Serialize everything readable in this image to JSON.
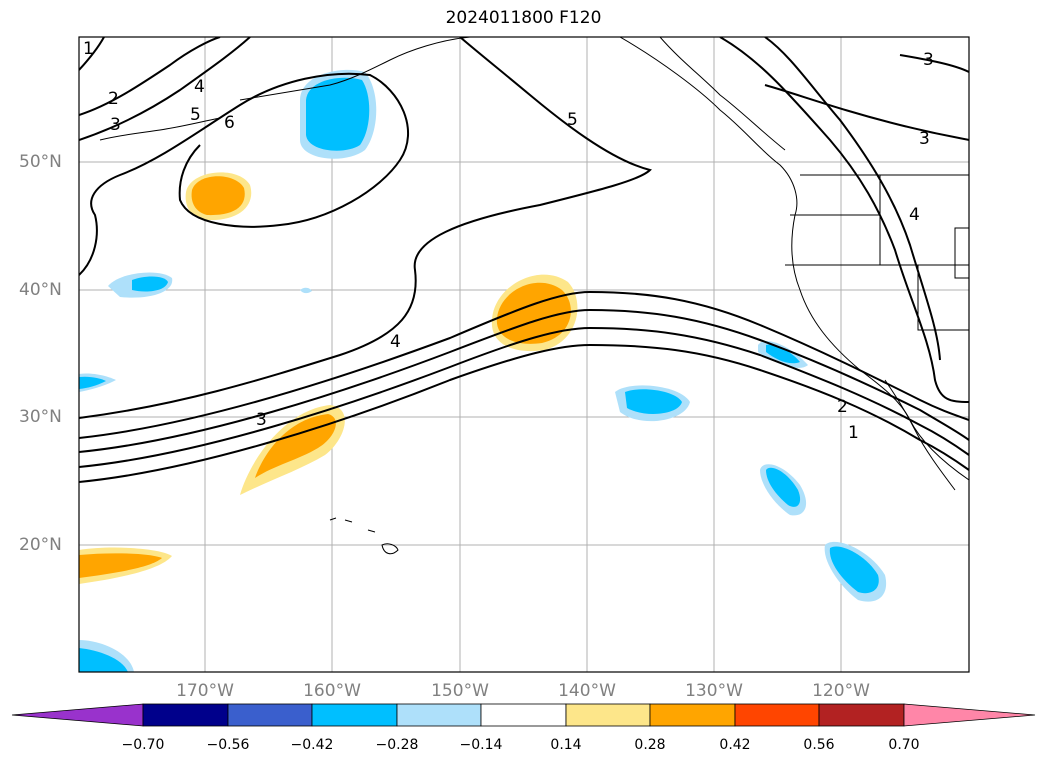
{
  "title": "2024011800 F120",
  "map": {
    "projection": "mercator",
    "lon_range": [
      -180,
      -110
    ],
    "lat_range": [
      10,
      60
    ],
    "gridlines": true,
    "field_contours": [
      "1",
      "2",
      "3",
      "4",
      "5",
      "6"
    ],
    "fill_colors_positive": [
      "#fde68a",
      "#ffa500",
      "#ff4500",
      "#b22222",
      "#ff86a8"
    ],
    "fill_colors_negative": [
      "#aee0fa",
      "#00bfff",
      "#3a5fcd",
      "#00008b",
      "#9932cc"
    ]
  },
  "lat_labels": [
    "50°N",
    "40°N",
    "30°N",
    "20°N"
  ],
  "lon_labels": [
    "170°W",
    "160°W",
    "150°W",
    "140°W",
    "130°W",
    "120°W"
  ],
  "colorbar": {
    "ticks": [
      "−0.70",
      "−0.56",
      "−0.42",
      "−0.28",
      "−0.14",
      "0.14",
      "0.28",
      "0.42",
      "0.56",
      "0.70"
    ],
    "colors": [
      "#9932cc",
      "#00008b",
      "#3a5fcd",
      "#00bfff",
      "#aee0fa",
      "#ffffff",
      "#fde68a",
      "#ffa500",
      "#ff4500",
      "#b22222",
      "#ff86a8"
    ]
  }
}
